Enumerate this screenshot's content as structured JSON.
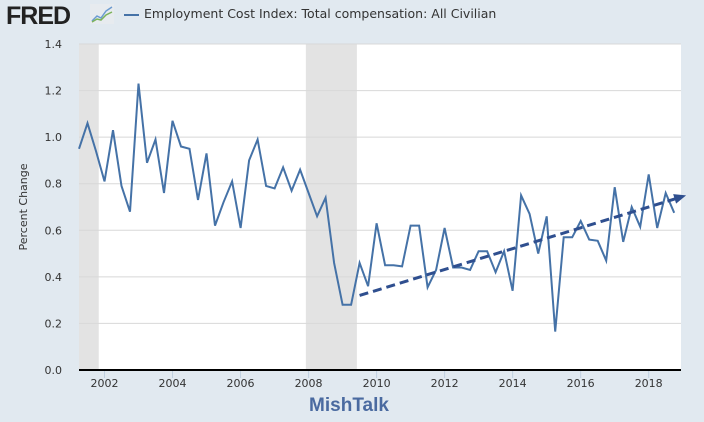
{
  "header": {
    "logo": "FRED",
    "legend_label": "Employment Cost Index: Total compensation: All Civilian"
  },
  "watermark": "MishTalk",
  "colors": {
    "series": "#4572a7",
    "trend": "#2f4f8f",
    "recession": "#e3e3e3",
    "background": "#e1e9f0"
  },
  "chart_data": {
    "type": "line",
    "title": "",
    "xlabel": "",
    "ylabel": "Percent Change",
    "xlim": [
      2001.25,
      2018.95
    ],
    "ylim": [
      0,
      1.4
    ],
    "grid": true,
    "legend": "top-left",
    "yticks": [
      "0.0",
      "0.2",
      "0.4",
      "0.6",
      "0.8",
      "1.0",
      "1.2",
      "1.4"
    ],
    "xticks": [
      "2002",
      "2004",
      "2006",
      "2008",
      "2010",
      "2012",
      "2014",
      "2016",
      "2018"
    ],
    "recessions": [
      [
        2001.25,
        2001.83
      ],
      [
        2007.92,
        2009.42
      ]
    ],
    "series": [
      {
        "name": "Employment Cost Index: Total compensation: All Civilian",
        "start": 2001.25,
        "step": 0.25,
        "values": [
          0.95,
          1.06,
          0.94,
          0.81,
          1.03,
          0.79,
          0.68,
          1.23,
          0.89,
          0.99,
          0.76,
          1.07,
          0.96,
          0.95,
          0.73,
          0.93,
          0.62,
          0.72,
          0.81,
          0.61,
          0.9,
          0.99,
          0.79,
          0.78,
          0.87,
          0.77,
          0.86,
          0.76,
          0.66,
          0.74,
          0.46,
          0.28,
          0.28,
          0.46,
          0.36,
          0.63,
          0.45,
          0.45,
          0.445,
          0.62,
          0.62,
          0.355,
          0.43,
          0.61,
          0.44,
          0.44,
          0.43,
          0.51,
          0.51,
          0.42,
          0.51,
          0.34,
          0.75,
          0.67,
          0.5,
          0.66,
          0.165,
          0.57,
          0.57,
          0.64,
          0.56,
          0.555,
          0.47,
          0.785,
          0.55,
          0.7,
          0.615,
          0.84,
          0.61,
          0.76,
          0.675
        ]
      }
    ],
    "annotations": [
      {
        "type": "trend-arrow",
        "from": [
          2009.5,
          0.32
        ],
        "to": [
          2019.1,
          0.75
        ]
      }
    ]
  }
}
